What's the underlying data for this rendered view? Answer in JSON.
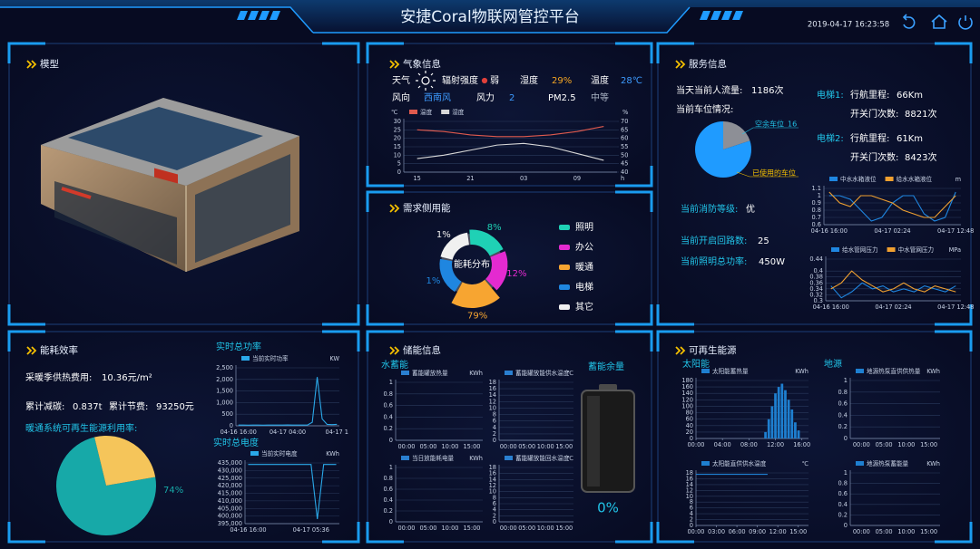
{
  "header": {
    "title": "安捷Coral物联网管控平台",
    "datetime": "2019-04-17 16:23:58"
  },
  "model": {
    "title": "模型"
  },
  "weather": {
    "title": "气象信息",
    "fields": [
      {
        "label": "天气"
      },
      {
        "label": "辐射强度",
        "value": "弱"
      },
      {
        "label": "湿度",
        "value": "29%"
      },
      {
        "label": "温度",
        "value": "28℃"
      },
      {
        "label": "风向",
        "value": "西南风"
      },
      {
        "label": "风力",
        "value": "2"
      },
      {
        "label": "PM2.5",
        "value": "中等"
      }
    ],
    "chart": {
      "type": "line",
      "y_unit": "℃",
      "y2_unit": "%",
      "x_unit": "h",
      "categories": [
        "15",
        null,
        "21",
        null,
        "03",
        null,
        "09",
        null
      ],
      "ylim": [
        0,
        30
      ],
      "yticks": [
        0,
        5,
        10,
        15,
        20,
        25,
        30
      ],
      "y2lim": [
        40,
        70
      ],
      "y2ticks": [
        40,
        45,
        50,
        55,
        60,
        65,
        70
      ],
      "series": [
        {
          "name": "温度",
          "color": "#e05a4e",
          "values": [
            25,
            24,
            22,
            21,
            21,
            22,
            24,
            27
          ]
        },
        {
          "name": "湿度",
          "color": "#d8d8d8",
          "axis": "y2",
          "values": [
            48,
            50,
            53,
            56,
            57,
            55,
            51,
            47
          ]
        }
      ]
    }
  },
  "demand": {
    "title": "需求侧用能",
    "chart": {
      "type": "rose",
      "center_label": "能耗分布",
      "categories": [
        "照明",
        "办公",
        "暖通",
        "电梯",
        "其它"
      ],
      "colors": [
        "#1fd1b5",
        "#e42ad0",
        "#f7a531",
        "#1f86e0",
        "#f0f0f0"
      ],
      "values": [
        8,
        12,
        79,
        1,
        1
      ],
      "value_labels": [
        "8%",
        "12%",
        "79%",
        "1%",
        "1%"
      ]
    }
  },
  "service": {
    "title": "服务信息",
    "flow": {
      "label": "当天当前人流量:",
      "value": "1186次"
    },
    "parking": {
      "label": "当前车位情况:",
      "chart": {
        "type": "pie",
        "slices": [
          {
            "name": "空余车位",
            "value": 16,
            "color": "#8d8f96"
          },
          {
            "name": "已使用的车位",
            "value": 64,
            "color": "#1f9bff"
          }
        ]
      }
    },
    "elevators": [
      {
        "name": "电梯1:",
        "mileage_label": "行航里程:",
        "mileage": "66Km",
        "doors_label": "开关门次数:",
        "doors": "8821次"
      },
      {
        "name": "电梯2:",
        "mileage_label": "行航里程:",
        "mileage": "61Km",
        "doors_label": "开关门次数:",
        "doors": "8423次"
      }
    ],
    "fire": {
      "label": "当前消防等级:",
      "value": "优"
    },
    "circuits": {
      "label": "当前开启回路数:",
      "value": 25
    },
    "lighting": {
      "label": "当前照明总功率:",
      "value": "450W"
    },
    "tank_chart": {
      "type": "line",
      "unit": "m",
      "categories": [
        "04-16 16:00",
        null,
        null,
        null,
        null,
        null,
        "04-17 02:24",
        null,
        null,
        null,
        null,
        null,
        "04-17 12:48"
      ],
      "ylim": [
        0.6,
        1.1
      ],
      "yticks": [
        0.6,
        0.7,
        0.8,
        0.9,
        1,
        1.1
      ],
      "series": [
        {
          "name": "中水水箱液位",
          "color": "#1f86e0",
          "values": [
            1.0,
            1.0,
            0.95,
            0.8,
            0.65,
            0.7,
            0.9,
            1.0,
            1.0,
            0.75,
            0.65,
            0.7,
            1.05
          ]
        },
        {
          "name": "给水水箱液位",
          "color": "#f0a030",
          "values": [
            1.05,
            0.9,
            0.85,
            1.0,
            1.0,
            0.95,
            0.9,
            0.8,
            0.75,
            0.7,
            0.7,
            0.85,
            1.0
          ]
        }
      ]
    },
    "pressure_chart": {
      "type": "line",
      "unit": "MPa",
      "categories": [
        "04-16 16:00",
        null,
        null,
        null,
        null,
        null,
        "04-17 02:24",
        null,
        null,
        null,
        null,
        null,
        "04-17 12:48"
      ],
      "ylim": [
        0.3,
        0.44
      ],
      "yticks": [
        0.3,
        0.32,
        0.34,
        0.36,
        0.38,
        0.4,
        0.44
      ],
      "series": [
        {
          "name": "给水管网压力",
          "color": "#1f86e0",
          "values": [
            0.35,
            0.31,
            0.33,
            0.36,
            0.34,
            0.35,
            0.33,
            0.34,
            0.33,
            0.35,
            0.34,
            0.33,
            0.35
          ]
        },
        {
          "name": "中水管网压力",
          "color": "#f0a030",
          "values": [
            0.34,
            0.36,
            0.4,
            0.37,
            0.35,
            0.33,
            0.34,
            0.36,
            0.34,
            0.33,
            0.35,
            0.34,
            0.33
          ]
        }
      ]
    }
  },
  "energy": {
    "title": "能耗效率",
    "heating_fee": {
      "label": "采暖季供热费用:",
      "value": "10.36元/m²"
    },
    "carbon": {
      "label": "累计减碳:",
      "value": "0.837t"
    },
    "savings": {
      "label": "累计节费:",
      "value": "93250元"
    },
    "renewable": {
      "label": "暖通系统可再生能源利用率:",
      "chart": {
        "type": "pie",
        "slices": [
          {
            "value": 74,
            "label": "74%",
            "color": "#17a9a8"
          },
          {
            "value": 26,
            "color": "#f5c55a"
          }
        ]
      }
    },
    "power": {
      "title": "实时总功率",
      "chart": {
        "type": "line",
        "unit": "KW",
        "categories": [
          "04-16 16:00",
          null,
          null,
          null,
          null,
          null,
          null,
          null,
          null,
          null,
          "04-17 04:00",
          null,
          null,
          null,
          null,
          null,
          null,
          null,
          null,
          null,
          "04-17 1"
        ],
        "ylim": [
          0,
          2500
        ],
        "yticks": [
          0,
          500,
          {
            "value": 1000,
            "label": "1,000"
          },
          {
            "value": 1500,
            "label": "1,500"
          },
          {
            "value": 2000,
            "label": "2,000"
          },
          {
            "value": 2500,
            "label": "2,500"
          }
        ],
        "series": [
          {
            "name": "当前实时功率",
            "color": "#2aa8e8",
            "values": [
              30,
              30,
              25,
              30,
              30,
              28,
              30,
              30,
              30,
              30,
              35,
              30,
              30,
              30,
              30,
              150,
              2100,
              300,
              60,
              50,
              60
            ]
          }
        ]
      }
    },
    "kwh": {
      "title": "实时总电度",
      "chart": {
        "type": "line",
        "unit": "KWh",
        "categories": [
          "04-16 16:00",
          null,
          null,
          null,
          null,
          null,
          null,
          null,
          null,
          null,
          "04-17 05:36",
          null,
          null,
          null,
          null
        ],
        "ylim": [
          395000,
          435000
        ],
        "yticks": [
          {
            "value": 395000,
            "label": "395,000"
          },
          {
            "value": 400000,
            "label": "400,000"
          },
          {
            "value": 405000,
            "label": "405,000"
          },
          {
            "value": 410000,
            "label": "410,000"
          },
          {
            "value": 415000,
            "label": "415,000"
          },
          {
            "value": 420000,
            "label": "420,000"
          },
          {
            "value": 425000,
            "label": "425,000"
          },
          {
            "value": 430000,
            "label": "430,000"
          },
          {
            "value": 435000,
            "label": "435,000"
          }
        ],
        "series": [
          {
            "name": "当前实时电度",
            "color": "#2aa8e8",
            "values": [
              434000,
              434000,
              434000,
              434000,
              434000,
              434000,
              434000,
              434000,
              434000,
              434000,
              434000,
              398000,
              434000,
              434000,
              434000
            ]
          }
        ]
      }
    }
  },
  "storage": {
    "title": "储能信息",
    "subtitle": "水蓄能",
    "charts": [
      {
        "type": "line",
        "unit": "KWh",
        "categories": [
          "00:00",
          "05:00",
          "10:00",
          "15:00"
        ],
        "ylim": [
          0,
          1
        ],
        "yticks": [
          0,
          0.2,
          0.4,
          0.6,
          0.8,
          1
        ],
        "series": [
          {
            "name": "蓄能罐放热量",
            "color": "#2a7fd0"
          }
        ]
      },
      {
        "type": "line",
        "unit": "℃",
        "categories": [
          "00:00",
          "05:00",
          "10:00",
          "15:00"
        ],
        "ylim": [
          0,
          18
        ],
        "yticks": [
          0,
          2,
          4,
          6,
          8,
          10,
          12,
          14,
          16,
          18
        ],
        "series": [
          {
            "name": "蓄能罐放能供水温度",
            "color": "#2a7fd0"
          }
        ]
      },
      {
        "type": "line",
        "unit": "KWh",
        "categories": [
          "00:00",
          "05:00",
          "10:00",
          "15:00"
        ],
        "ylim": [
          0,
          1
        ],
        "yticks": [
          0,
          0.2,
          0.4,
          0.6,
          0.8,
          1
        ],
        "series": [
          {
            "name": "当日放能耗电量",
            "color": "#2a7fd0"
          }
        ]
      },
      {
        "type": "line",
        "unit": "℃",
        "categories": [
          "00:00",
          "05:00",
          "10:00",
          "15:00"
        ],
        "ylim": [
          0,
          18
        ],
        "yticks": [
          0,
          2,
          4,
          6,
          8,
          10,
          12,
          14,
          16,
          18
        ],
        "series": [
          {
            "name": "蓄能罐放能回水温度",
            "color": "#2a7fd0"
          }
        ]
      }
    ],
    "battery": {
      "label": "蓄能余量",
      "value": "0%"
    }
  },
  "renewable": {
    "title": "可再生能源",
    "solar_label": "太阳能",
    "geo_label": "地源",
    "charts": [
      {
        "type": "bar",
        "unit": "KWh",
        "xlim": [
          0,
          17
        ],
        "xticks": [
          {
            "value": 0,
            "label": "00:00"
          },
          {
            "value": 4,
            "label": "04:00"
          },
          {
            "value": 8,
            "label": "08:00"
          },
          {
            "value": 12,
            "label": "12:00"
          },
          {
            "value": 16,
            "label": "16:00"
          }
        ],
        "ylim": [
          0,
          180
        ],
        "yticks": [
          0,
          20,
          40,
          60,
          80,
          100,
          120,
          140,
          160,
          180
        ],
        "series": [
          {
            "name": "太阳能蓄热量",
            "color": "#1e7fd0",
            "x": [
              10.5,
              11,
              11.5,
              12,
              12.5,
              13,
              13.5,
              14,
              14.5,
              15,
              15.5
            ],
            "values": [
              20,
              60,
              100,
              140,
              160,
              170,
              150,
              120,
              90,
              50,
              25
            ]
          }
        ]
      },
      {
        "type": "line",
        "unit": "KWh",
        "categories": [
          "00:00",
          "05:00",
          "10:00",
          "15:00"
        ],
        "ylim": [
          0,
          1
        ],
        "yticks": [
          0,
          0.2,
          0.4,
          0.6,
          0.8,
          1
        ],
        "series": [
          {
            "name": "地源热泵直供供热量",
            "color": "#1e7fd0"
          }
        ]
      },
      {
        "type": "line",
        "unit": "℃",
        "xlim": [
          0,
          16.5
        ],
        "xticks": [
          {
            "value": 0,
            "label": "00:00"
          },
          {
            "value": 3,
            "label": "03:00"
          },
          {
            "value": 6,
            "label": "06:00"
          },
          {
            "value": 9,
            "label": "09:00"
          },
          {
            "value": 12,
            "label": "12:00"
          },
          {
            "value": 15,
            "label": "15:00"
          }
        ],
        "ylim": [
          0,
          18
        ],
        "yticks": [
          0,
          2,
          4,
          6,
          8,
          10,
          12,
          14,
          16,
          18
        ],
        "series": [
          {
            "name": "太阳能直供供水温度",
            "color": "#1e7fd0",
            "x": [
              0,
              3,
              6,
              9,
              10.5
            ],
            "values": [
              17.5,
              17.5,
              17.5,
              17.5,
              17.5
            ]
          }
        ]
      },
      {
        "type": "line",
        "unit": "KWh",
        "categories": [
          "00:00",
          "05:00",
          "10:00",
          "15:00"
        ],
        "ylim": [
          0,
          1
        ],
        "yticks": [
          0,
          0.2,
          0.4,
          0.6,
          0.8,
          1
        ],
        "series": [
          {
            "name": "地源热泵蓄能量",
            "color": "#1e7fd0"
          }
        ]
      }
    ]
  }
}
